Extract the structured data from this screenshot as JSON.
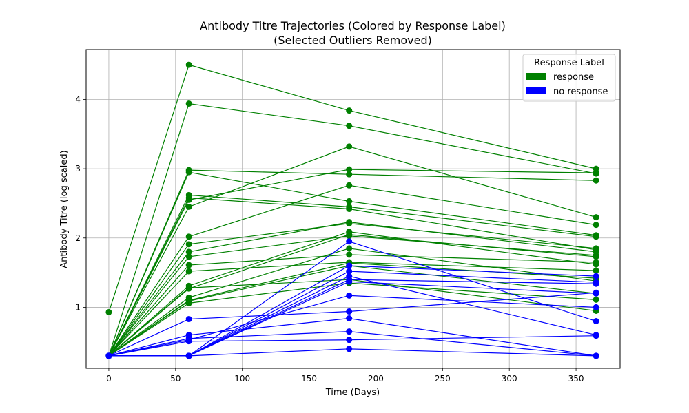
{
  "chart_data": {
    "type": "line",
    "title": "Antibody Titre Trajectories (Colored by Response Label)",
    "subtitle": "(Selected Outliers Removed)",
    "xlabel": "Time (Days)",
    "ylabel": "Antibody Titre (log scaled)",
    "xlim": [
      -17,
      383
    ],
    "ylim": [
      0.12,
      4.72
    ],
    "xticks": [
      0,
      50,
      100,
      150,
      200,
      250,
      300,
      350
    ],
    "yticks": [
      1,
      2,
      3,
      4
    ],
    "grid": true,
    "legend": {
      "title": "Response Label",
      "placement": "top-right",
      "entries": [
        {
          "label": "response",
          "color": "#008000"
        },
        {
          "label": "no response",
          "color": "#0000ff"
        }
      ]
    },
    "x": [
      0,
      60,
      180,
      365
    ],
    "series_groups": [
      {
        "label": "response",
        "color": "#008000",
        "trajectories": [
          [
            0.93,
            4.5,
            3.84,
            3.0
          ],
          [
            0.3,
            3.94,
            3.62,
            2.93
          ],
          [
            0.3,
            2.98,
            2.92,
            2.83
          ],
          [
            0.3,
            2.95,
            2.53,
            2.04
          ],
          [
            0.3,
            2.62,
            2.45,
            2.02
          ],
          [
            0.3,
            2.58,
            2.42,
            1.83
          ],
          [
            0.3,
            2.55,
            2.99,
            2.94
          ],
          [
            0.3,
            2.45,
            3.32,
            2.3
          ],
          [
            0.3,
            2.02,
            2.76,
            2.19
          ],
          [
            0.3,
            1.91,
            2.21,
            1.85
          ],
          [
            0.3,
            1.8,
            2.23,
            1.8
          ],
          [
            0.3,
            1.73,
            2.03,
            1.75
          ],
          [
            0.3,
            1.61,
            1.76,
            1.65
          ],
          [
            0.3,
            1.52,
            1.65,
            1.53
          ],
          [
            0.3,
            1.31,
            2.09,
            1.62
          ],
          [
            0.3,
            1.27,
            2.05,
            1.73
          ],
          [
            0.3,
            1.14,
            1.85,
            1.38
          ],
          [
            0.3,
            1.09,
            1.6,
            1.2
          ],
          [
            0.3,
            1.06,
            1.35,
            1.11
          ],
          [
            0.3,
            1.28,
            1.4,
            0.95
          ],
          [
            0.3,
            1.1,
            1.64,
            1.42
          ]
        ]
      },
      {
        "label": "no response",
        "color": "#0000ff",
        "trajectories": [
          [
            0.3,
            0.83,
            0.94,
            1.21
          ],
          [
            0.3,
            0.6,
            0.84,
            0.3
          ],
          [
            0.3,
            0.55,
            0.65,
            0.3
          ],
          [
            0.3,
            0.53,
            1.17,
            1.0
          ],
          [
            0.3,
            0.51,
            0.53,
            0.59
          ],
          [
            0.3,
            0.3,
            0.4,
            0.3
          ],
          [
            0.3,
            0.3,
            1.95,
            0.8
          ],
          [
            0.3,
            0.3,
            1.6,
            1.45
          ],
          [
            0.3,
            0.3,
            1.52,
            1.36
          ],
          [
            0.3,
            0.3,
            1.45,
            0.6
          ],
          [
            0.3,
            0.3,
            1.37,
            1.2
          ],
          [
            0.3,
            0.3,
            1.4,
            1.34
          ]
        ]
      }
    ]
  }
}
